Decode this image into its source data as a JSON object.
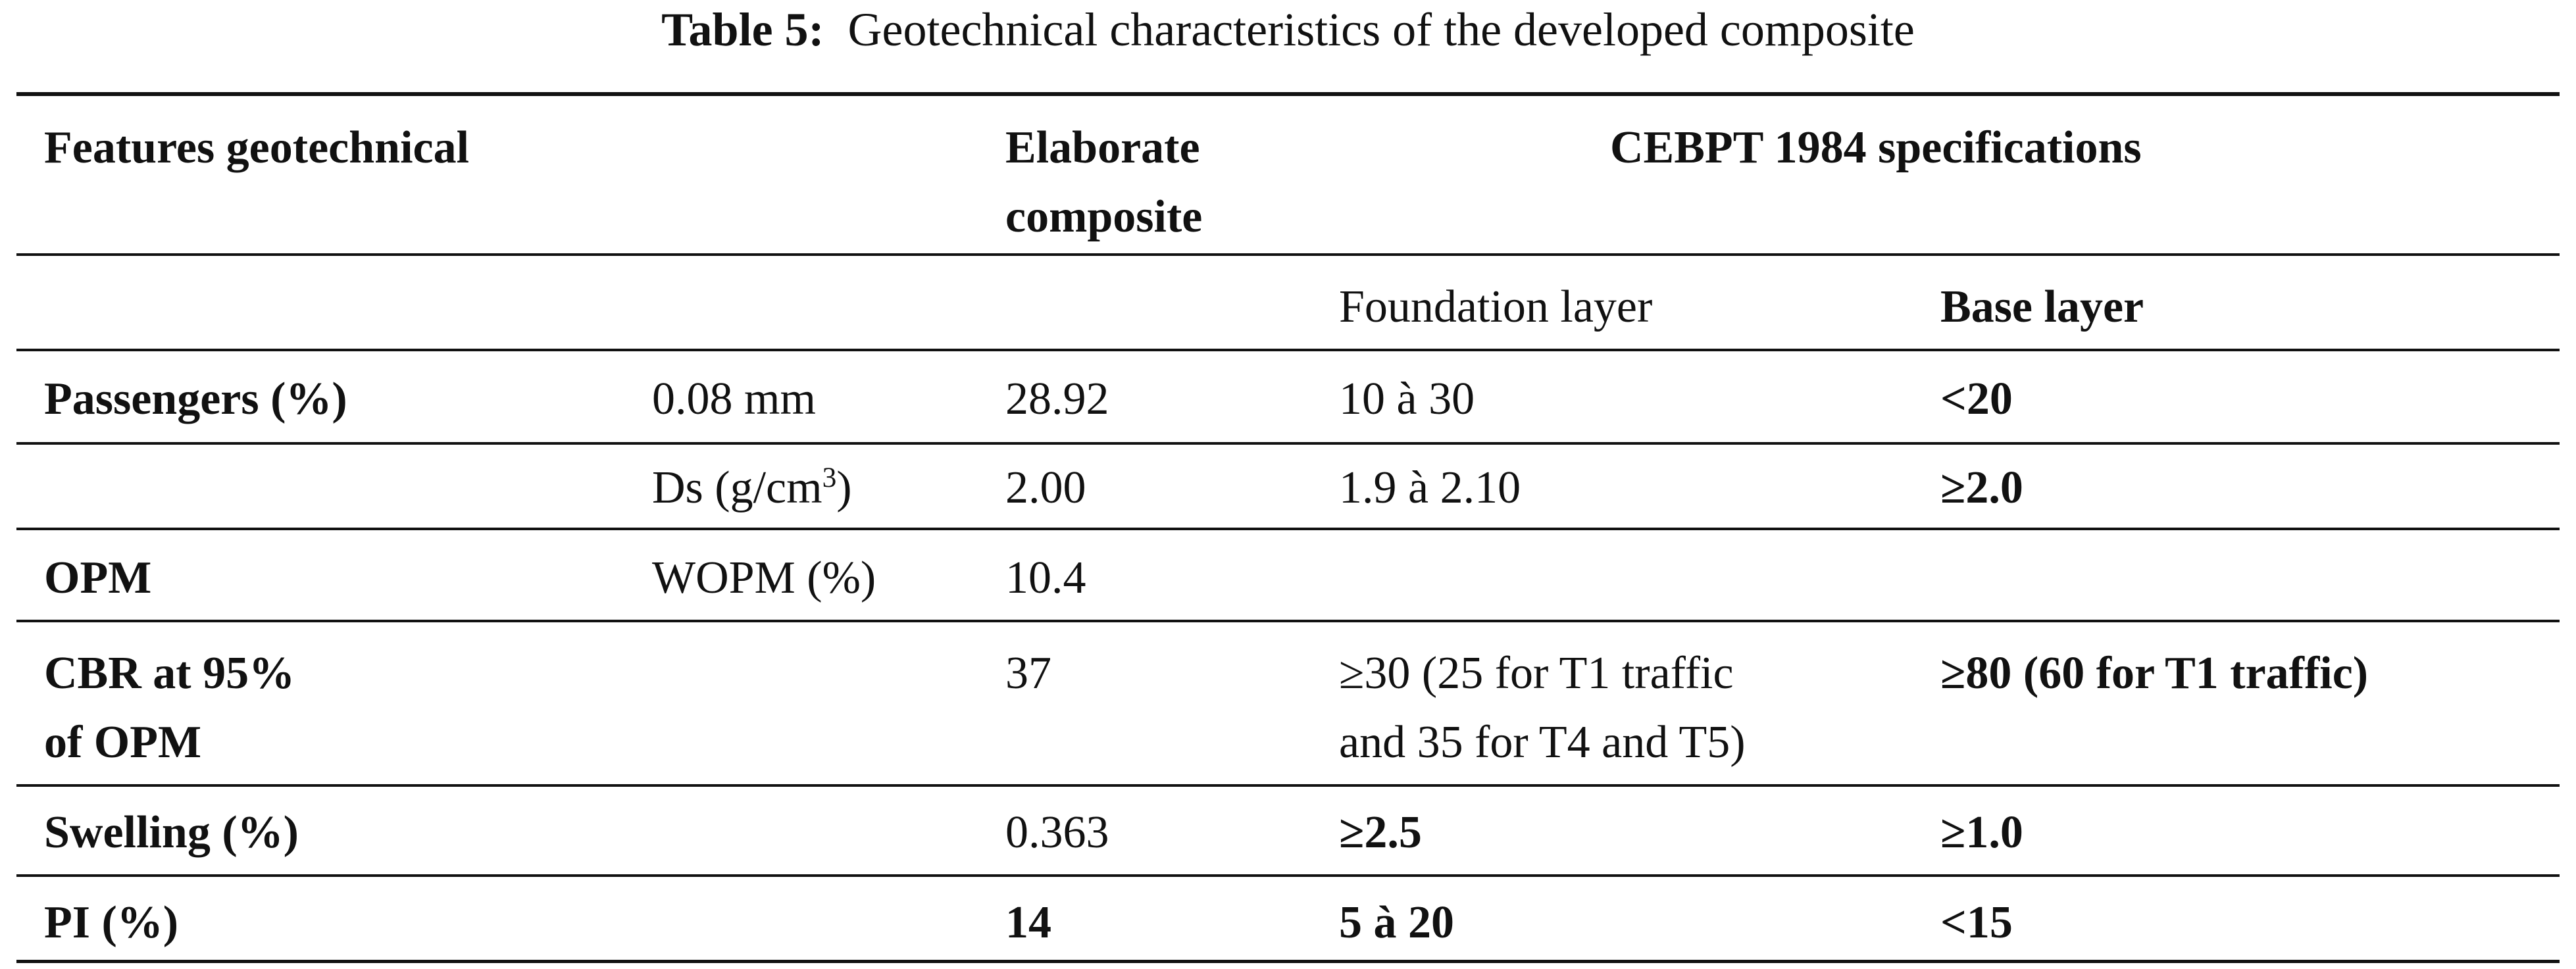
{
  "title": {
    "label": "Table 5:",
    "text": "Geotechnical characteristics of the developed composite"
  },
  "table": {
    "header": [
      [
        "Features geotechnical"
      ],
      [
        "Elaborate",
        "composite"
      ],
      [
        "CEBPT 1984 specifications"
      ]
    ],
    "subheader": [
      "Foundation layer",
      "Base layer"
    ],
    "rows": [
      [
        "Passengers (%)",
        "0.08 mm",
        "28.92",
        "10 à 30",
        "<20"
      ],
      [
        null,
        {
          "text": "Ds (g/cm",
          "sup": "3",
          "after": ")"
        },
        "2.00",
        "1.9 à 2.10",
        "≥2.0"
      ],
      [
        "OPM",
        "WOPM (%)",
        "10.4",
        null,
        null
      ],
      [
        [
          "CBR at 95%",
          "of OPM"
        ],
        null,
        "37",
        [
          "≥30 (25 for T1 traffic",
          "and 35 for T4 and T5)"
        ],
        "≥80 (60 for T1 traffic)"
      ],
      [
        "Swelling (%)",
        null,
        "0.363",
        "≥2.5",
        "≥1.0"
      ],
      [
        "PI (%)",
        null,
        "14",
        "5 à 20",
        "<15"
      ]
    ]
  }
}
